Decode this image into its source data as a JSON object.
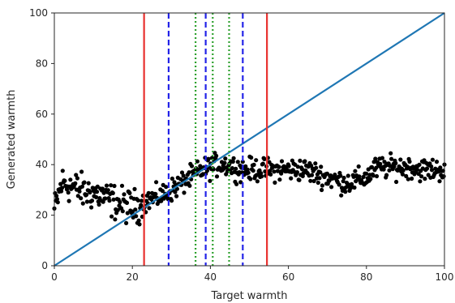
{
  "chart_data": {
    "type": "scatter",
    "title": "",
    "xlabel": "Target warmth",
    "ylabel": "Generated warmth",
    "xlim": [
      0,
      100
    ],
    "ylim": [
      0,
      100
    ],
    "xticks": [
      "0",
      "20",
      "40",
      "60",
      "80",
      "100"
    ],
    "yticks": [
      "0",
      "20",
      "40",
      "60",
      "80",
      "100"
    ],
    "grid": false,
    "legend": "none",
    "colors": {
      "points": "#000000",
      "diagonal": "#1f77b4",
      "solid_lines": "#e8312f",
      "dashed_lines": "#2323e8",
      "dotted_lines": "#2ca02c"
    },
    "diagonal": [
      [
        0,
        0
      ],
      [
        100,
        100
      ]
    ],
    "vertical_lines": [
      {
        "style": "solid",
        "x": 23.0
      },
      {
        "style": "solid",
        "x": 54.5
      },
      {
        "style": "dashed",
        "x": 29.3
      },
      {
        "style": "dashed",
        "x": 38.8
      },
      {
        "style": "dashed",
        "x": 48.3
      },
      {
        "style": "dotted",
        "x": 36.2
      },
      {
        "style": "dotted",
        "x": 40.6
      },
      {
        "style": "dotted",
        "x": 44.8
      }
    ],
    "trend_x": [
      0,
      2,
      5,
      8,
      10,
      13,
      16,
      18,
      20,
      22,
      24,
      26,
      28,
      30,
      32,
      34,
      36,
      38,
      40,
      42,
      44,
      46,
      48,
      50,
      52,
      54,
      56,
      58,
      60,
      62,
      64,
      66,
      68,
      70,
      72,
      74,
      76,
      78,
      80,
      82,
      84,
      86,
      88,
      90,
      92,
      94,
      96,
      98,
      100
    ],
    "trend_y": [
      22,
      33,
      31,
      29,
      29,
      27,
      25,
      24,
      23,
      24,
      26,
      27,
      28,
      30,
      32,
      34,
      36,
      38,
      39,
      40,
      40,
      39,
      38,
      38,
      38,
      38,
      38,
      38,
      38,
      38,
      38,
      37,
      36,
      35,
      34,
      33,
      33,
      34,
      35,
      38,
      39,
      39,
      39,
      39,
      39,
      38,
      38,
      38,
      38
    ],
    "spread": 3.2,
    "point_count": 560
  }
}
